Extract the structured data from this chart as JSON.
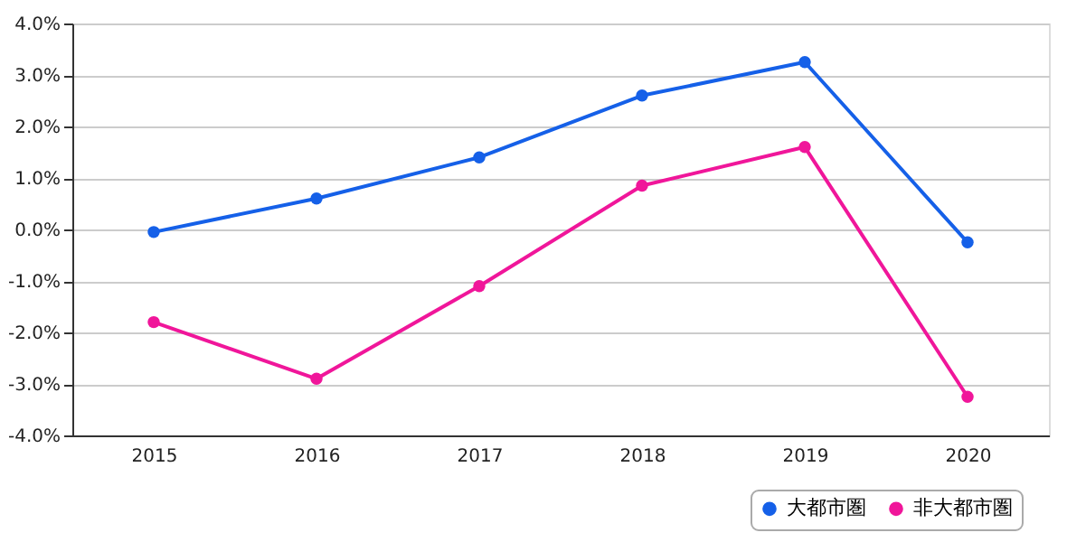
{
  "chart_data": {
    "type": "line",
    "categories": [
      "2015",
      "2016",
      "2017",
      "2018",
      "2019",
      "2020"
    ],
    "series": [
      {
        "name": "大都市圏",
        "color": "#1560e8",
        "values": [
          -0.05,
          0.6,
          1.4,
          2.6,
          3.25,
          -0.25
        ]
      },
      {
        "name": "非大都市圏",
        "color": "#f0169a",
        "values": [
          -1.8,
          -2.9,
          -1.1,
          0.85,
          1.6,
          -3.25
        ]
      }
    ],
    "ylim": [
      -4,
      4
    ],
    "yticks": [
      {
        "value": -4,
        "label": "-4.0%"
      },
      {
        "value": -3,
        "label": "-3.0%"
      },
      {
        "value": -2,
        "label": "-2.0%"
      },
      {
        "value": -1,
        "label": "-1.0%"
      },
      {
        "value": 0,
        "label": "0.0%"
      },
      {
        "value": 1,
        "label": "1.0%"
      },
      {
        "value": 2,
        "label": "2.0%"
      },
      {
        "value": 3,
        "label": "3.0%"
      },
      {
        "value": 4,
        "label": "4.0%"
      }
    ],
    "grid": "y",
    "legend": "bottom right",
    "marker": "circle",
    "line_style": "solid"
  }
}
